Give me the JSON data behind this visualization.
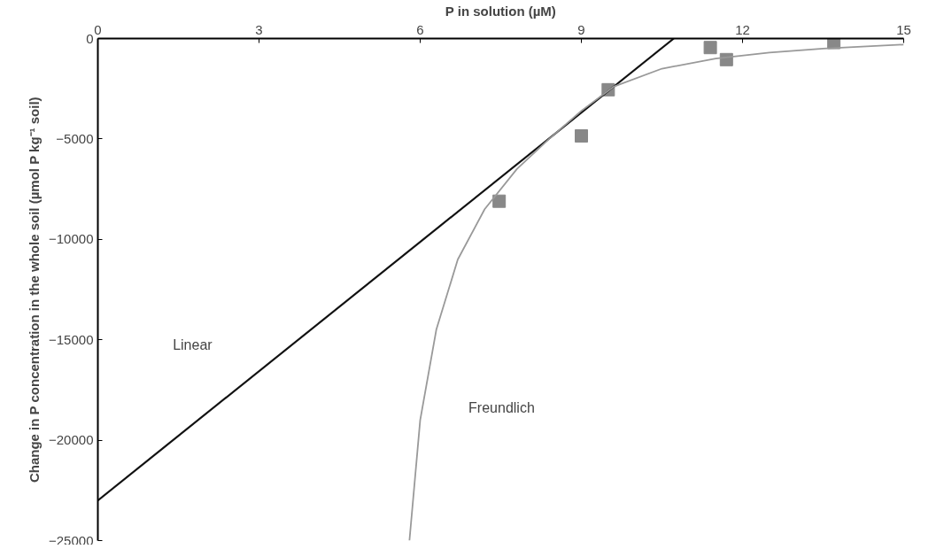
{
  "chart_data": {
    "type": "line",
    "xlabel": "P in solution (µM)",
    "ylabel": "Change in P concentration in the whole soil (µmol P kg⁻¹ soil)",
    "xlim": [
      0,
      15
    ],
    "xticks": [
      0,
      3,
      6,
      9,
      12,
      15
    ],
    "ylim": [
      -25000,
      0
    ],
    "yticks": [
      0,
      -5000,
      -10000,
      -15000,
      -20000,
      -25000
    ],
    "grid": false,
    "annotations": [
      "Linear",
      "Freundlich"
    ],
    "series": [
      {
        "type": "scatter",
        "marker": "square",
        "color": "#888888",
        "x": [
          7.47,
          9.0,
          9.5,
          11.4,
          11.7,
          13.7
        ],
        "values": [
          -8100,
          -4850,
          -2550,
          -450,
          -1050,
          -200
        ]
      },
      {
        "color": "#111111",
        "line_style": "solid",
        "x": [
          0,
          10.72
        ],
        "values": [
          -23000,
          0
        ]
      },
      {
        "color": "#999999",
        "line_style": "solid",
        "x": [
          5.8,
          6.0,
          6.3,
          6.7,
          7.2,
          7.8,
          8.4,
          9.0,
          9.6,
          10.5,
          11.5,
          12.5,
          13.5,
          15
        ],
        "values": [
          -25000,
          -19000,
          -14500,
          -11000,
          -8500,
          -6500,
          -5000,
          -3600,
          -2400,
          -1500,
          -1000,
          -700,
          -500,
          -300
        ]
      }
    ]
  }
}
